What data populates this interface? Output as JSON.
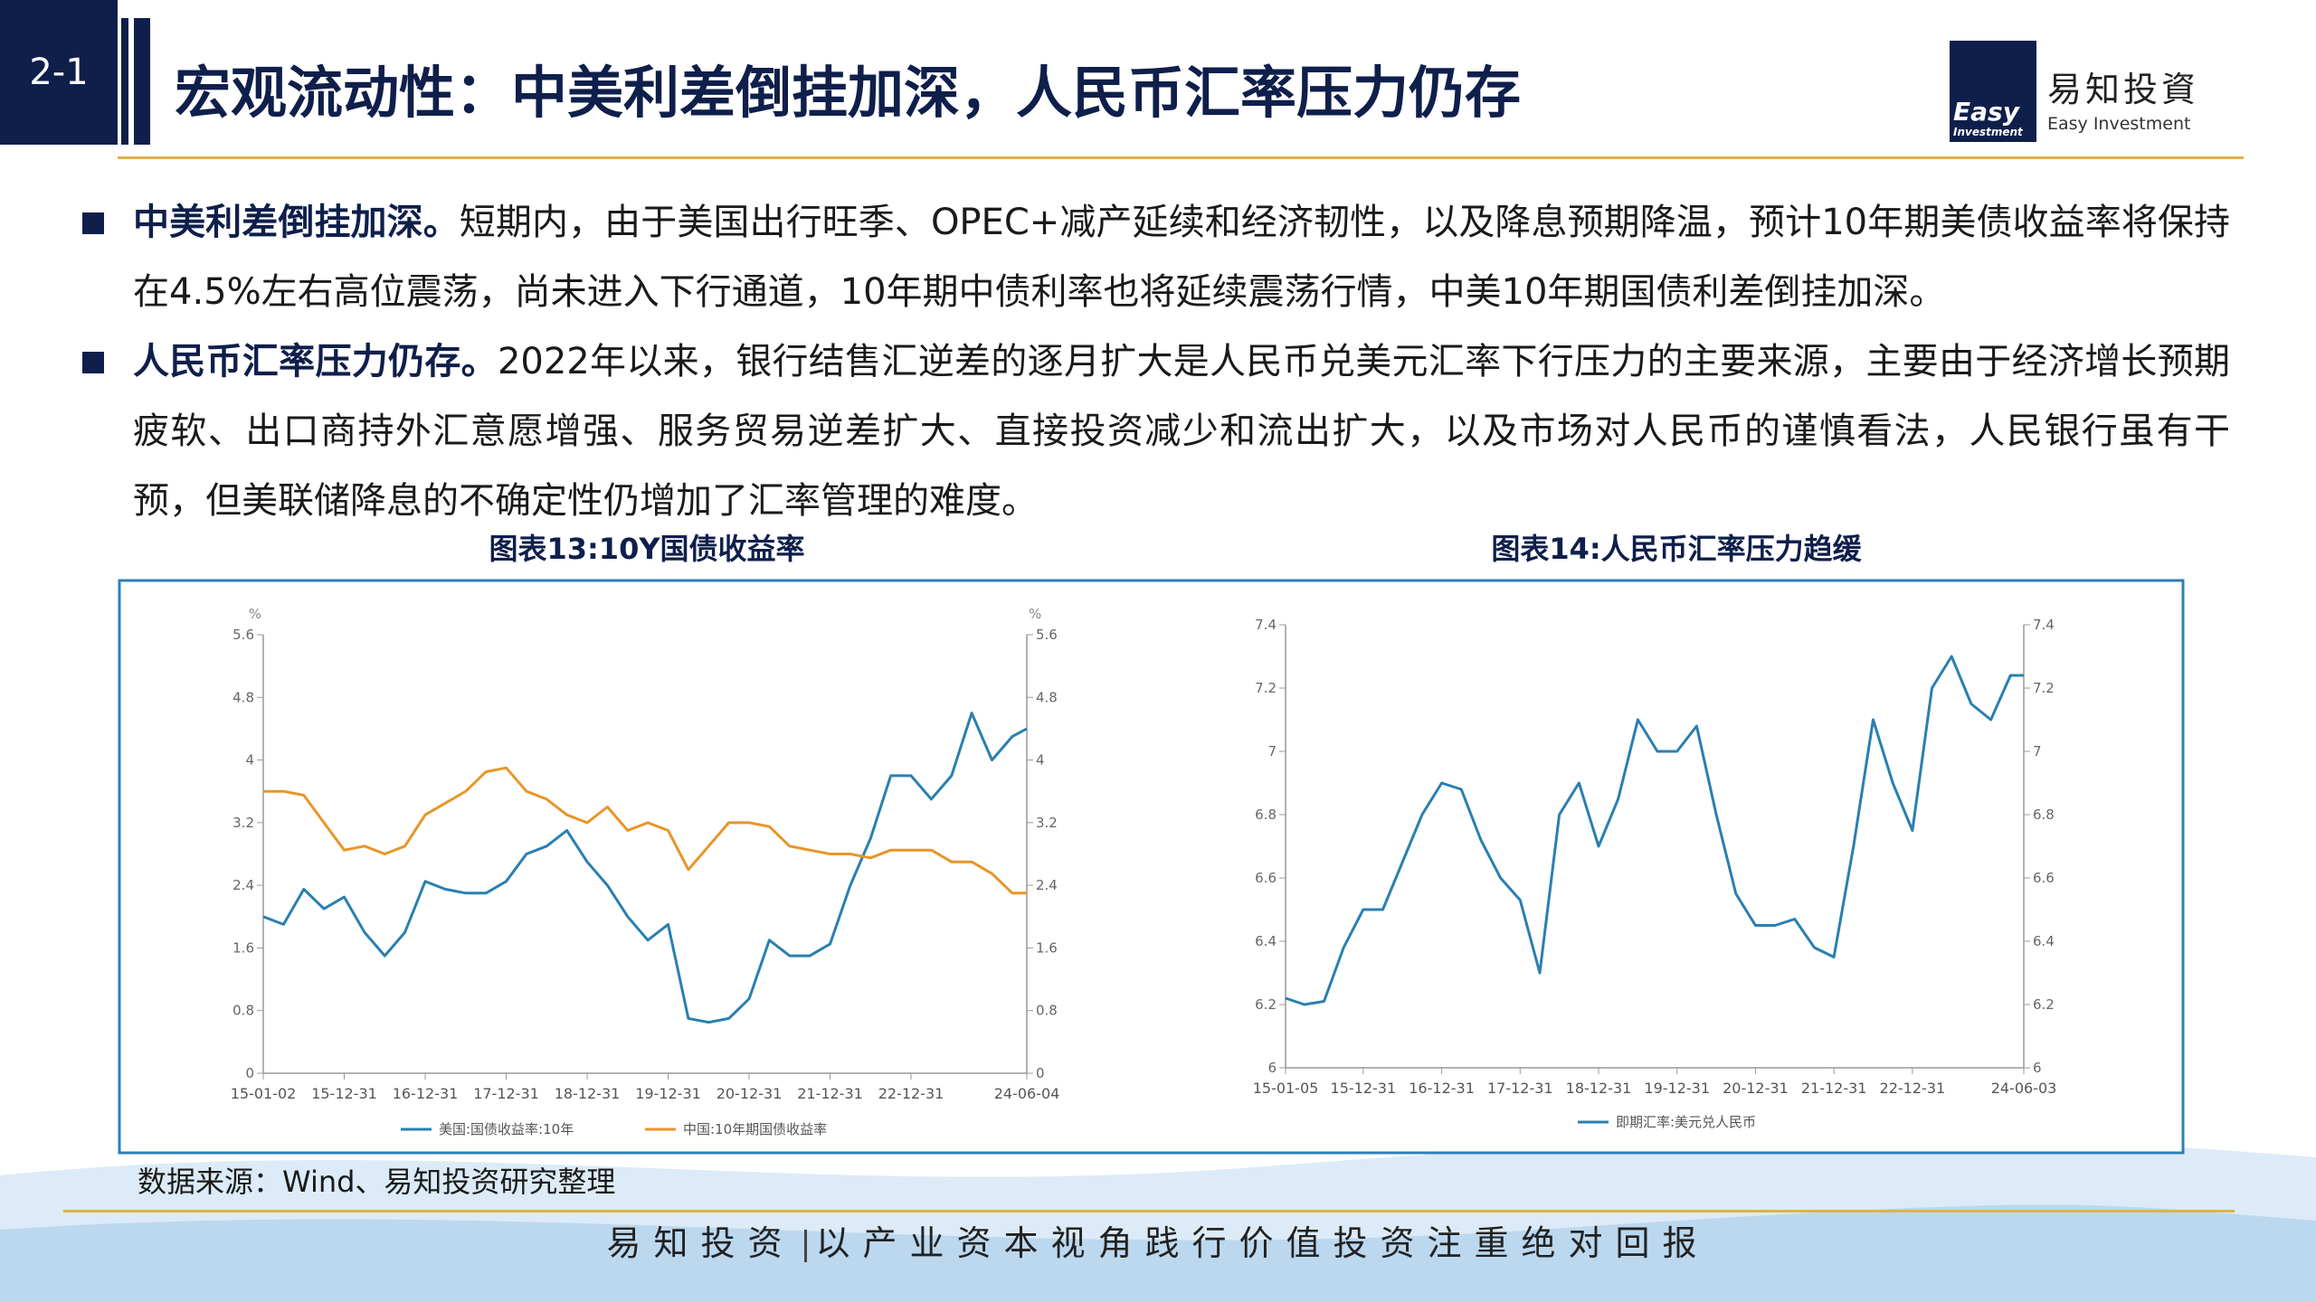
{
  "header": {
    "section": "2-1",
    "title": "宏观流动性：中美利差倒挂加深，人民币汇率压力仍存"
  },
  "logo": {
    "icon_text": "Easy",
    "icon_subtext": "Investment",
    "name": "易知投資",
    "english": "Easy Investment"
  },
  "bullets": [
    {
      "lead": "中美利差倒挂加深。",
      "text": "短期内，由于美国出行旺季、OPEC+减产延续和经济韧性，以及降息预期降温，预计10年期美债收益率将保持在4.5%左右高位震荡，尚未进入下行通道，10年期中债利率也将延续震荡行情，中美10年期国债利差倒挂加深。"
    },
    {
      "lead": "人民币汇率压力仍存。",
      "text": "2022年以来，银行结售汇逆差的逐月扩大是人民币兑美元汇率下行压力的主要来源，主要由于经济增长预期疲软、出口商持外汇意愿增强、服务贸易逆差扩大、直接投资减少和流出扩大，以及市场对人民币的谨慎看法，人民银行虽有干预，但美联储降息的不确定性仍增加了汇率管理的难度。"
    }
  ],
  "chart_data": [
    {
      "type": "line",
      "title": "图表13:10Y国债收益率",
      "y_unit": "%",
      "y2_unit": "%",
      "x": [
        2015.0,
        2015.25,
        2015.5,
        2015.75,
        2016.0,
        2016.25,
        2016.5,
        2016.75,
        2017.0,
        2017.25,
        2017.5,
        2017.75,
        2018.0,
        2018.25,
        2018.5,
        2018.75,
        2019.0,
        2019.25,
        2019.5,
        2019.75,
        2020.0,
        2020.25,
        2020.5,
        2020.75,
        2021.0,
        2021.25,
        2021.5,
        2021.75,
        2022.0,
        2022.25,
        2022.5,
        2022.75,
        2023.0,
        2023.25,
        2023.5,
        2023.75,
        2024.0,
        2024.25,
        2024.43
      ],
      "xlim": [
        2015.0,
        2024.43
      ],
      "xticks": [
        {
          "value": 2015.0,
          "label": "15-01-02"
        },
        {
          "value": 2016.0,
          "label": "15-12-31"
        },
        {
          "value": 2017.0,
          "label": "16-12-31"
        },
        {
          "value": 2018.0,
          "label": "17-12-31"
        },
        {
          "value": 2019.0,
          "label": "18-12-31"
        },
        {
          "value": 2020.0,
          "label": "19-12-31"
        },
        {
          "value": 2021.0,
          "label": "20-12-31"
        },
        {
          "value": 2022.0,
          "label": "21-12-31"
        },
        {
          "value": 2023.0,
          "label": "22-12-31"
        },
        {
          "value": 2024.43,
          "label": "24-06-04"
        }
      ],
      "ylim": [
        0,
        5.6
      ],
      "yticks": [
        0,
        0.8,
        1.6,
        2.4,
        3.2,
        4,
        4.8,
        5.6
      ],
      "y2lim": [
        0,
        5.6
      ],
      "y2ticks": [
        0,
        0.8,
        1.6,
        2.4,
        3.2,
        4,
        4.8,
        5.6
      ],
      "series": [
        {
          "name": "美国:国债收益率:10年",
          "color": "#2a7fb0",
          "values": [
            2.0,
            1.9,
            2.35,
            2.1,
            2.25,
            1.8,
            1.5,
            1.8,
            2.45,
            2.35,
            2.3,
            2.3,
            2.45,
            2.8,
            2.9,
            3.1,
            2.7,
            2.4,
            2.0,
            1.7,
            1.9,
            0.7,
            0.65,
            0.7,
            0.95,
            1.7,
            1.5,
            1.5,
            1.65,
            2.4,
            3.0,
            3.8,
            3.8,
            3.5,
            3.8,
            4.6,
            4.0,
            4.3,
            4.4
          ]
        },
        {
          "name": "中国:10年期国债收益率",
          "color": "#e8952a",
          "values": [
            3.6,
            3.6,
            3.55,
            3.2,
            2.85,
            2.9,
            2.8,
            2.9,
            3.3,
            3.45,
            3.6,
            3.85,
            3.9,
            3.6,
            3.5,
            3.3,
            3.2,
            3.4,
            3.1,
            3.2,
            3.1,
            2.6,
            2.9,
            3.2,
            3.2,
            3.15,
            2.9,
            2.85,
            2.8,
            2.8,
            2.75,
            2.85,
            2.85,
            2.85,
            2.7,
            2.7,
            2.55,
            2.3,
            2.3
          ]
        }
      ]
    },
    {
      "type": "line",
      "title": "图表14:人民币汇率压力趋缓",
      "x": [
        2015.01,
        2015.25,
        2015.5,
        2015.75,
        2016.0,
        2016.25,
        2016.5,
        2016.75,
        2017.0,
        2017.25,
        2017.5,
        2017.75,
        2018.0,
        2018.25,
        2018.5,
        2018.75,
        2019.0,
        2019.25,
        2019.5,
        2019.75,
        2020.0,
        2020.25,
        2020.5,
        2020.75,
        2021.0,
        2021.25,
        2021.5,
        2021.75,
        2022.0,
        2022.25,
        2022.5,
        2022.75,
        2023.0,
        2023.25,
        2023.5,
        2023.75,
        2024.0,
        2024.25,
        2024.42
      ],
      "xlim": [
        2015.01,
        2024.42
      ],
      "xticks": [
        {
          "value": 2015.01,
          "label": "15-01-05"
        },
        {
          "value": 2016.0,
          "label": "15-12-31"
        },
        {
          "value": 2017.0,
          "label": "16-12-31"
        },
        {
          "value": 2018.0,
          "label": "17-12-31"
        },
        {
          "value": 2019.0,
          "label": "18-12-31"
        },
        {
          "value": 2020.0,
          "label": "19-12-31"
        },
        {
          "value": 2021.0,
          "label": "20-12-31"
        },
        {
          "value": 2022.0,
          "label": "21-12-31"
        },
        {
          "value": 2023.0,
          "label": "22-12-31"
        },
        {
          "value": 2024.42,
          "label": "24-06-03"
        }
      ],
      "ylim": [
        6,
        7.4
      ],
      "yticks": [
        6,
        6.2,
        6.4,
        6.6,
        6.8,
        7,
        7.2,
        7.4
      ],
      "y2lim": [
        6,
        7.4
      ],
      "y2ticks": [
        6,
        6.2,
        6.4,
        6.6,
        6.8,
        7,
        7.2,
        7.4
      ],
      "series": [
        {
          "name": "即期汇率:美元兑人民币",
          "color": "#2a7fb0",
          "values": [
            6.22,
            6.2,
            6.21,
            6.38,
            6.5,
            6.5,
            6.65,
            6.8,
            6.9,
            6.88,
            6.72,
            6.6,
            6.53,
            6.3,
            6.8,
            6.9,
            6.7,
            6.85,
            7.1,
            7.0,
            7.0,
            7.08,
            6.8,
            6.55,
            6.45,
            6.45,
            6.47,
            6.38,
            6.35,
            6.7,
            7.1,
            6.9,
            6.75,
            7.2,
            7.3,
            7.15,
            7.1,
            7.24,
            7.24
          ]
        }
      ]
    }
  ],
  "source": "数据来源：Wind、易知投资研究整理",
  "footer": {
    "brand": "易知投资",
    "slogan": "以产业资本视角践行价值投资注重绝对回报"
  }
}
